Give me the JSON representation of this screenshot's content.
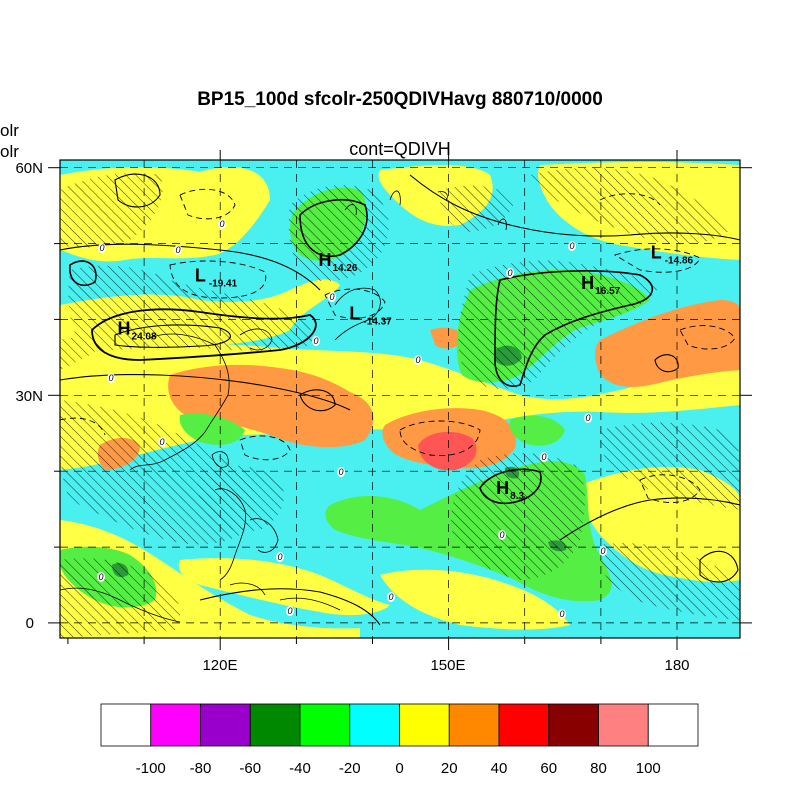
{
  "figure": {
    "title": "BP15_100d sfcolr-250QDIVHavg  880710/0000",
    "subtitle": "cont=QDIVH",
    "left_labels": [
      "olr",
      "olr"
    ]
  },
  "map": {
    "projection": "cylindrical-equidistant",
    "lon_range": [
      102,
      190
    ],
    "lat_range": [
      -2,
      61
    ],
    "lon_ticks": [
      {
        "value": 120,
        "label": "120E"
      },
      {
        "value": 150,
        "label": "150E"
      },
      {
        "value": 180,
        "label": "180"
      }
    ],
    "lat_ticks": [
      {
        "value": 60,
        "label": "60N"
      },
      {
        "value": 30,
        "label": "30N"
      },
      {
        "value": 0,
        "label": "0"
      }
    ],
    "grid": "dashed every 10 degrees",
    "shading": "hatched = negative values",
    "contour_zero_label": "0",
    "extrema": [
      {
        "type": "H",
        "value": "24.08",
        "lon": 111,
        "lat": 38
      },
      {
        "type": "L",
        "value": "-19.41",
        "lon": 121,
        "lat": 45
      },
      {
        "type": "H",
        "value": "14.26",
        "lon": 137,
        "lat": 47
      },
      {
        "type": "L",
        "value": "-14.37",
        "lon": 141,
        "lat": 40
      },
      {
        "type": "H",
        "value": "16.57",
        "lon": 171,
        "lat": 44
      },
      {
        "type": "L",
        "value": "-14.86",
        "lon": 180,
        "lat": 48
      },
      {
        "type": "H",
        "value": "8.3",
        "lon": 160,
        "lat": 17
      }
    ]
  },
  "colorbar": {
    "labels": [
      "-100",
      "-80",
      "-60",
      "-40",
      "-20",
      "0",
      "20",
      "40",
      "60",
      "80",
      "100"
    ],
    "colors": [
      "#ffffff",
      "#ff00ff",
      "#9900cc",
      "#008800",
      "#00ff00",
      "#00ffff",
      "#ffff00",
      "#ff8800",
      "#ff0000",
      "#880000",
      "#ff8080",
      "#ffffff"
    ]
  },
  "palette": {
    "cyan": "#4af0f0",
    "yellow": "#ffff44",
    "orange": "#ff9944",
    "green": "#55ee44",
    "red": "#ff5555",
    "darkgreen": "#2a9a3a"
  }
}
